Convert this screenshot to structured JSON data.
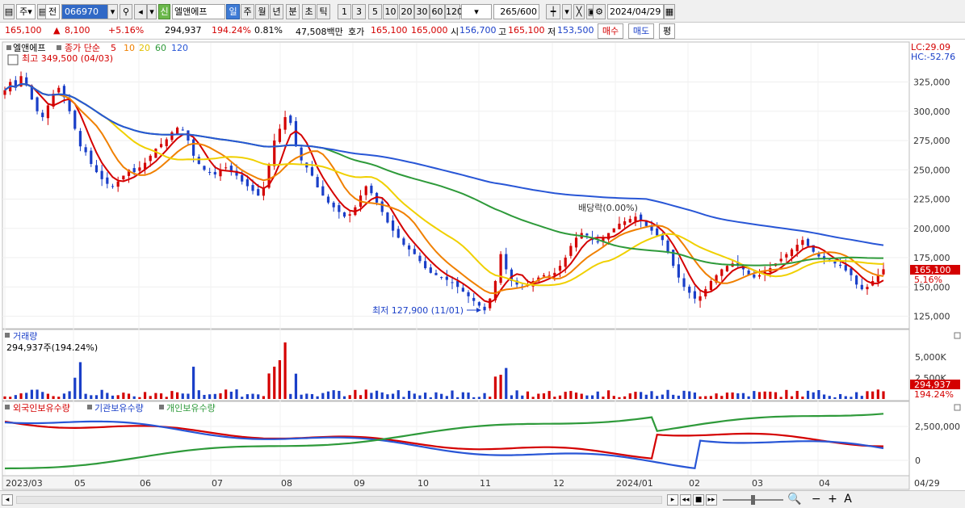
{
  "toolbar": {
    "type_select": "주",
    "prev_label": "전",
    "code": "066970",
    "credit_badge": "신",
    "stock_name": "엘앤에프",
    "periods": [
      "일",
      "주",
      "월",
      "년",
      "분",
      "초",
      "틱"
    ],
    "intervals": [
      "1",
      "3",
      "5",
      "10",
      "20",
      "30",
      "60",
      "120"
    ],
    "count": "265",
    "count_total": "/600",
    "date": "2024/04/29"
  },
  "quote": {
    "price": "165,100",
    "change": "8,100",
    "change_pct": "+5.16%",
    "volume": "294,937",
    "volume_ratio": "194.24%",
    "turnover": "0.81%",
    "amount": "47,508백만",
    "hoga_label": "호가",
    "hoga_sell": "165,100",
    "hoga_buy": "165,000",
    "open_label": "시",
    "open": "156,700",
    "high_label": "고",
    "high": "165,100",
    "low_label": "저",
    "low": "153,500",
    "buy_btn": "매수",
    "sell_btn": "매도",
    "eval_btn": "평"
  },
  "price_panel": {
    "name": "엘앤에프",
    "legend_close": "종가 단순",
    "ma": [
      {
        "period": "5",
        "color": "#d40000"
      },
      {
        "period": "10",
        "color": "#f08000"
      },
      {
        "period": "20",
        "color": "#f0d000"
      },
      {
        "period": "60",
        "color": "#2e9a3a"
      },
      {
        "period": "120",
        "color": "#2856d6"
      }
    ],
    "high_note": "최고 349,500 (04/03)",
    "low_note": "최저 127,900 (11/01)",
    "dividend_note": "배당락(0.00%)",
    "lc": "LC:29.09",
    "hc": "HC:-52.76",
    "last_price": "165,100",
    "last_pct": "5.16%",
    "yticks": [
      "325,000",
      "300,000",
      "275,000",
      "250,000",
      "225,000",
      "200,000",
      "175,000",
      "150,000",
      "125,000"
    ]
  },
  "volume_panel": {
    "title": "거래량",
    "value": "294,937주(194.24%)",
    "yticks": [
      "5,000K",
      "2,500K"
    ],
    "last_value": "294,937",
    "last_pct": "194.24%"
  },
  "holder_panel": {
    "series": [
      {
        "name": "외국인보유수량",
        "color": "#d40000"
      },
      {
        "name": "기관보유수량",
        "color": "#2856d6"
      },
      {
        "name": "개인보유수량",
        "color": "#2e9a3a"
      }
    ],
    "yticks": [
      "2,500,000",
      "0"
    ]
  },
  "xaxis": {
    "labels": [
      "2023/03",
      "05",
      "06",
      "07",
      "08",
      "09",
      "10",
      "11",
      "12",
      "2024/01",
      "02",
      "03",
      "04"
    ],
    "last_label": "04/29"
  },
  "chart_data": {
    "type": "candlestick",
    "title": "엘앤에프",
    "ylim": [
      115000,
      355000
    ],
    "closes": [
      318000,
      325000,
      320000,
      330000,
      322000,
      310000,
      300000,
      295000,
      305000,
      315000,
      320000,
      312000,
      300000,
      285000,
      270000,
      265000,
      255000,
      248000,
      242000,
      238000,
      236000,
      240000,
      245000,
      250000,
      248000,
      252000,
      256000,
      262000,
      268000,
      272000,
      276000,
      282000,
      286000,
      284000,
      275000,
      262000,
      255000,
      250000,
      248000,
      246000,
      250000,
      252000,
      248000,
      245000,
      240000,
      236000,
      232000,
      228000,
      234000,
      255000,
      275000,
      285000,
      295000,
      290000,
      270000,
      258000,
      252000,
      245000,
      235000,
      228000,
      222000,
      218000,
      214000,
      210000,
      212000,
      218000,
      228000,
      236000,
      230000,
      222000,
      214000,
      205000,
      198000,
      192000,
      186000,
      182000,
      178000,
      172000,
      166000,
      162000,
      160000,
      158000,
      156000,
      154000,
      150000,
      146000,
      142000,
      138000,
      134000,
      130000,
      140000,
      155000,
      178000,
      165000,
      155000,
      152000,
      150000,
      152000,
      155000,
      158000,
      160000,
      160000,
      162000,
      168000,
      175000,
      185000,
      192000,
      196000,
      194000,
      190000,
      188000,
      192000,
      196000,
      200000,
      204000,
      206000,
      208000,
      210000,
      206000,
      202000,
      198000,
      194000,
      190000,
      180000,
      168000,
      158000,
      150000,
      145000,
      140000,
      142000,
      148000,
      155000,
      160000,
      165000,
      168000,
      170000,
      168000,
      165000,
      160000,
      158000,
      160000,
      163000,
      166000,
      170000,
      174000,
      178000,
      182000,
      186000,
      190000,
      185000,
      180000,
      176000,
      174000,
      172000,
      170000,
      168000,
      164000,
      160000,
      152000,
      148000,
      150000,
      155000,
      160000,
      165100
    ],
    "ma_periods": [
      5,
      10,
      20,
      60,
      120
    ],
    "note_high": {
      "value": 349500,
      "date": "04/03"
    },
    "note_low": {
      "value": 127900,
      "date": "11/01"
    }
  }
}
